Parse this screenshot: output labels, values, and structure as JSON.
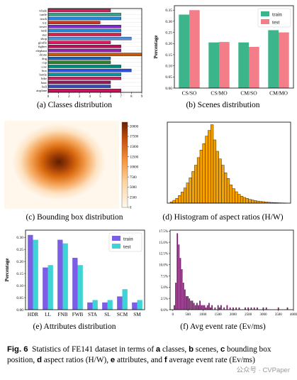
{
  "figure": {
    "label": "Fig. 6",
    "text_parts": [
      "Statistics of FE141 dataset in terms of ",
      {
        "b": "a"
      },
      " classes, ",
      {
        "b": "b"
      },
      " scenes, ",
      {
        "b": "c"
      },
      " bounding box position, ",
      {
        "b": "d"
      },
      " aspect ratios (H/W), ",
      {
        "b": "e"
      },
      " attributes, and ",
      {
        "b": "f"
      },
      " average event rate (Ev/ms)"
    ],
    "watermark": "公众号 · CVPaper"
  },
  "chart_data": [
    {
      "id": "a",
      "type": "bar",
      "orientation": "horizontal",
      "caption": "(a) Classes distribution",
      "categories": [
        "whale",
        "turtle",
        "truck",
        "toy",
        "tower",
        "tank",
        "star",
        "shop",
        "giraffe",
        "fighter",
        "elephant",
        "drone",
        "dog",
        "cup",
        "cow",
        "box",
        "bottle",
        "bike",
        "bear",
        "ball",
        "airplane"
      ],
      "values": [
        6.0,
        7.0,
        7.0,
        5.0,
        7.0,
        7.0,
        7.0,
        8.0,
        6.0,
        7.0,
        7.0,
        9.0,
        6.0,
        6.0,
        7.0,
        8.0,
        7.0,
        7.0,
        6.0,
        6.0,
        7.0
      ],
      "colors": [
        "#d81b60",
        "#2ca58d",
        "#1e88e5",
        "#c0392b",
        "#7b2cbf",
        "#1e88e5",
        "#e6194b",
        "#4a90e2",
        "#d81b60",
        "#ad1457",
        "#8e24aa",
        "#d35400",
        "#1565c0",
        "#2e7d32",
        "#00897b",
        "#2e4fd6",
        "#0097a7",
        "#d81b60",
        "#8e1b5c",
        "#3949ab",
        "#c2185b"
      ],
      "xlim": [
        0,
        9
      ],
      "xticks": [
        "0",
        "1",
        "2",
        "3",
        "4",
        "5",
        "6",
        "7",
        "8",
        "9"
      ]
    },
    {
      "id": "b",
      "type": "bar",
      "caption": "(b) Scenes distribution",
      "categories": [
        "CS/SO",
        "CS/MO",
        "CM/SO",
        "CM/MO"
      ],
      "series": [
        {
          "name": "train",
          "color": "#3cb58a",
          "values": [
            0.33,
            0.205,
            0.205,
            0.26
          ]
        },
        {
          "name": "test",
          "color": "#f47d8a",
          "values": [
            0.35,
            0.207,
            0.185,
            0.25
          ]
        }
      ],
      "ylabel": "Percentage",
      "ylim": [
        0,
        0.37
      ],
      "yticks": [
        "0.00",
        "0.05",
        "0.10",
        "0.15",
        "0.20",
        "0.25",
        "0.30",
        "0.35"
      ],
      "legend": "top-right"
    },
    {
      "id": "c",
      "type": "heatmap",
      "caption": "(c) Bounding box distribution",
      "colorbar_ticks": [
        "0",
        "2500",
        "5000",
        "7500",
        "10000",
        "12500",
        "15000",
        "17500",
        "20000"
      ],
      "colorbar_max": 21000
    },
    {
      "id": "d",
      "type": "bar",
      "caption": "(d) Histogram of aspect ratios (H/W)",
      "values": [
        20,
        45,
        75,
        120,
        175,
        240,
        320,
        400,
        500,
        600,
        720,
        840,
        940,
        1060,
        1150,
        1240,
        1000,
        820,
        700,
        600,
        480,
        390,
        290,
        230,
        180,
        140,
        110,
        90,
        75,
        60,
        50,
        40,
        33,
        28,
        23,
        18,
        14,
        11,
        9,
        7,
        5,
        4,
        3
      ],
      "color": "#f5a200",
      "ylim": [
        0,
        1280
      ]
    },
    {
      "id": "e",
      "type": "bar",
      "caption": "(e) Attributes distribution",
      "categories": [
        "HDR",
        "LL",
        "FNB",
        "FWB",
        "STA",
        "SL",
        "SCM",
        "SM"
      ],
      "series": [
        {
          "name": "train",
          "color": "#7b5de6",
          "values": [
            0.31,
            0.175,
            0.29,
            0.215,
            0.03,
            0.03,
            0.055,
            0.03
          ]
        },
        {
          "name": "test",
          "color": "#3fd3d6",
          "values": [
            0.29,
            0.185,
            0.275,
            0.185,
            0.04,
            0.04,
            0.085,
            0.04
          ]
        }
      ],
      "ylabel": "Percentage",
      "ylim": [
        0,
        0.33
      ],
      "yticks": [
        "0.00",
        "0.05",
        "0.10",
        "0.15",
        "0.20",
        "0.25",
        "0.30"
      ],
      "legend": "top-right"
    },
    {
      "id": "f",
      "type": "bar",
      "caption": "(f) Avg event rate (Ev/ms)",
      "ylim": [
        0,
        0.177
      ],
      "yticks": [
        "0.0%",
        "2.5%",
        "5.0%",
        "7.5%",
        "10.0%",
        "12.5%",
        "15.0%",
        "17.5%"
      ],
      "xlim": [
        -90,
        4000
      ],
      "xticks": [
        "0",
        "500",
        "1000",
        "1500",
        "2000",
        "2500",
        "3000",
        "3500",
        "4000"
      ],
      "color": "#7a1f6e",
      "points": [
        [
          50,
          0.01
        ],
        [
          100,
          0.06
        ],
        [
          150,
          0.17
        ],
        [
          200,
          0.145
        ],
        [
          250,
          0.115
        ],
        [
          300,
          0.09
        ],
        [
          350,
          0.06
        ],
        [
          400,
          0.045
        ],
        [
          450,
          0.03
        ],
        [
          500,
          0.03
        ],
        [
          550,
          0.025
        ],
        [
          600,
          0.02
        ],
        [
          650,
          0.02
        ],
        [
          700,
          0.015
        ],
        [
          750,
          0.01
        ],
        [
          800,
          0.015
        ],
        [
          850,
          0.01
        ],
        [
          900,
          0.02
        ],
        [
          950,
          0.01
        ],
        [
          1000,
          0.01
        ],
        [
          1050,
          0.01
        ],
        [
          1100,
          0.005
        ],
        [
          1150,
          0.01
        ],
        [
          1200,
          0.015
        ],
        [
          1250,
          0.005
        ],
        [
          1300,
          0.01
        ],
        [
          1400,
          0.005
        ],
        [
          1500,
          0.01
        ],
        [
          1550,
          0.005
        ],
        [
          1600,
          0.01
        ],
        [
          1700,
          0.005
        ],
        [
          1800,
          0.01
        ],
        [
          1900,
          0.005
        ],
        [
          2000,
          0.005
        ],
        [
          2100,
          0.005
        ],
        [
          2200,
          0.005
        ],
        [
          2400,
          0.005
        ],
        [
          2500,
          0.005
        ],
        [
          2600,
          0.005
        ],
        [
          2700,
          0.005
        ],
        [
          2800,
          0.005
        ],
        [
          3000,
          0.005
        ],
        [
          3100,
          0.005
        ],
        [
          3500,
          0.005
        ],
        [
          3800,
          0.005
        ]
      ]
    }
  ]
}
